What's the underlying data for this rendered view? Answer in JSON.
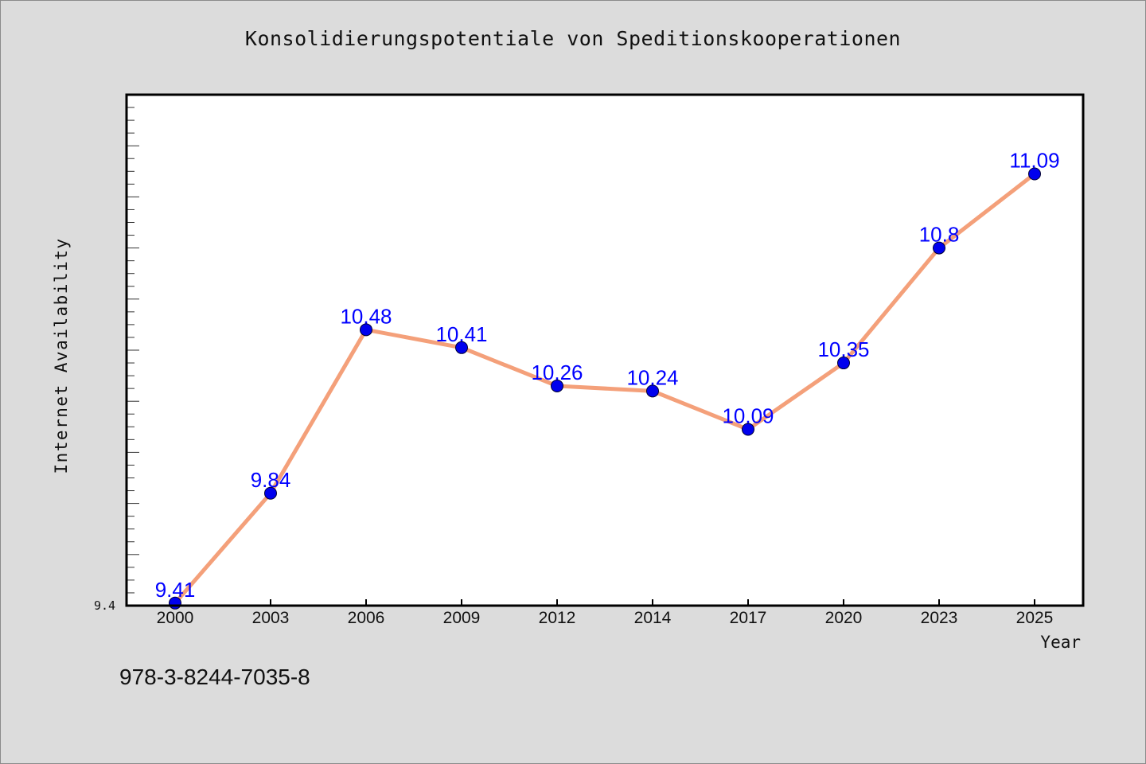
{
  "chart_data": {
    "type": "line",
    "title": "Konsolidierungspotentiale von Speditionskooperationen",
    "xlabel": "Year",
    "ylabel": "Internet Availability",
    "categories": [
      "2000",
      "2003",
      "2006",
      "2009",
      "2012",
      "2014",
      "2017",
      "2020",
      "2023",
      "2025"
    ],
    "series": [
      {
        "values": [
          9.41,
          9.84,
          10.48,
          10.41,
          10.26,
          10.24,
          10.09,
          10.35,
          10.8,
          11.09
        ],
        "labels": [
          "9.41",
          "9.84",
          "10.48",
          "10.41",
          "10.26",
          "10.24",
          "10.09",
          "10.35",
          "10.8",
          "11.09"
        ],
        "line_color": "#f4a07a",
        "marker_color": "#0000ee",
        "label_color": "#0000ff"
      }
    ],
    "ylim": [
      9.4,
      11.4
    ],
    "ytick_labels": [
      "9.4"
    ],
    "grid": false,
    "legend": "none"
  },
  "footnote": "978-3-8244-7035-8",
  "colors": {
    "background": "#dcdcdc",
    "plot_area": "#ffffff",
    "line": "#f4a07a",
    "marker": "#0000ee",
    "data_label": "#0000ff"
  }
}
